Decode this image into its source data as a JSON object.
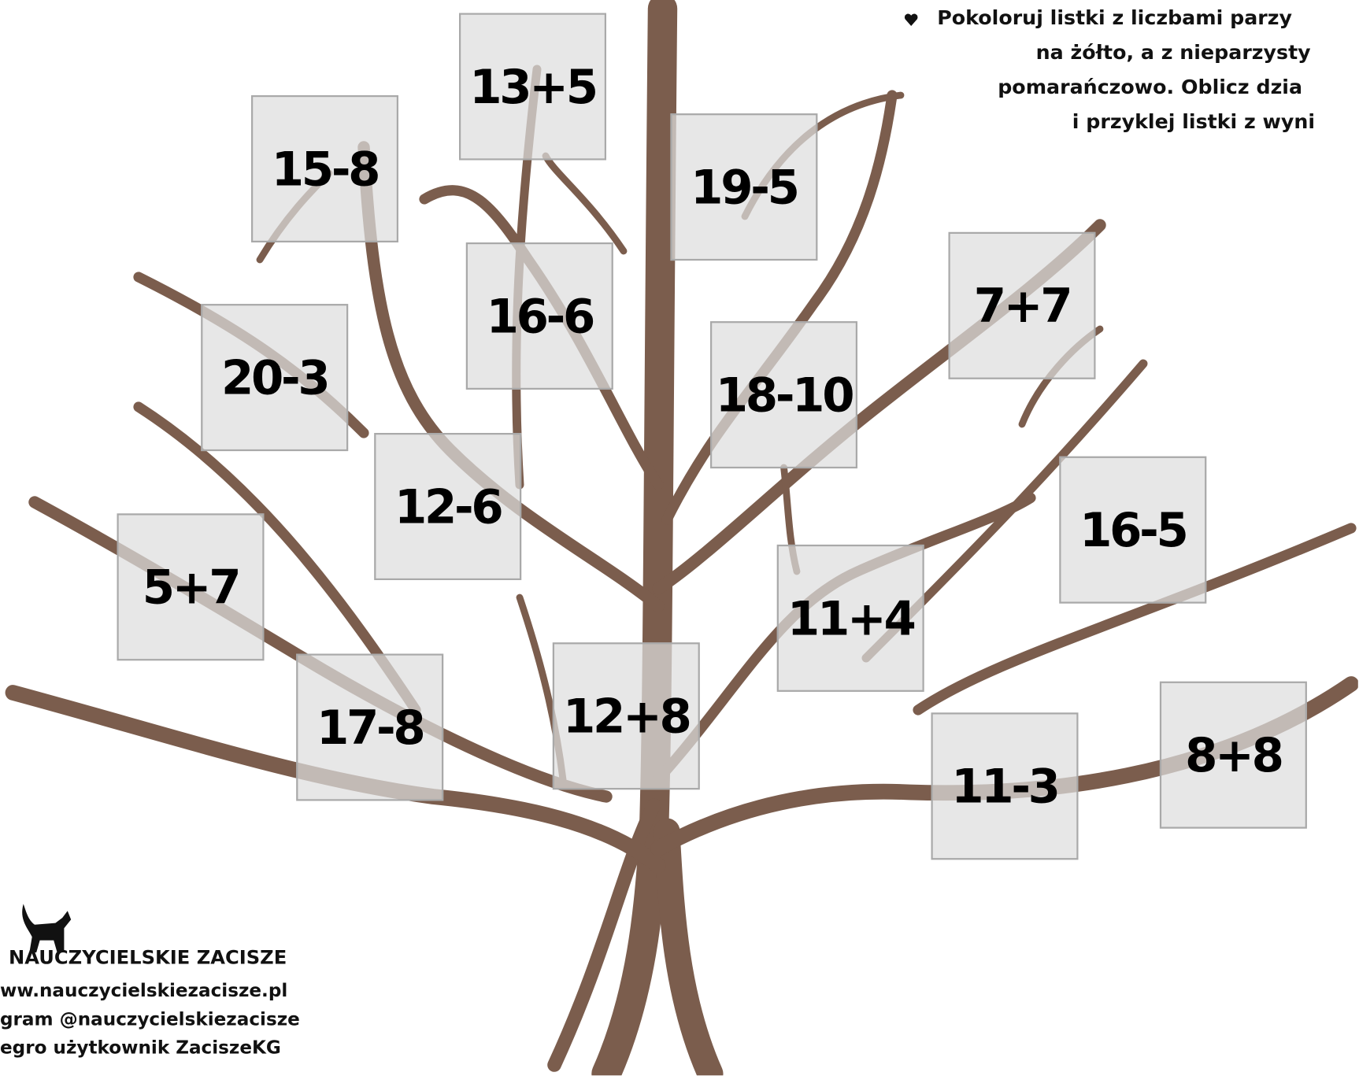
{
  "instructions": [
    "Pokoloruj listki z liczbami parzy",
    "na żółto, a z nieparzysty",
    "pomarańczowo. Oblicz dzia",
    "i przyklej listki z wyni"
  ],
  "cards": [
    "13+5",
    "15-8",
    "19-5",
    "16-6",
    "7+7",
    "20-3",
    "18-10",
    "12-6",
    "16-5",
    "5+7",
    "11+4",
    "12+8",
    "17-8",
    "8+8",
    "11-3"
  ],
  "footer": {
    "brand": "NAUCZYCIELSKIE ZACISZE",
    "lines": [
      "ww.nauczycielskiezacisze.pl",
      "gram @nauczycielskiezacisze",
      "egro użytkownik ZaciszeKG"
    ]
  }
}
